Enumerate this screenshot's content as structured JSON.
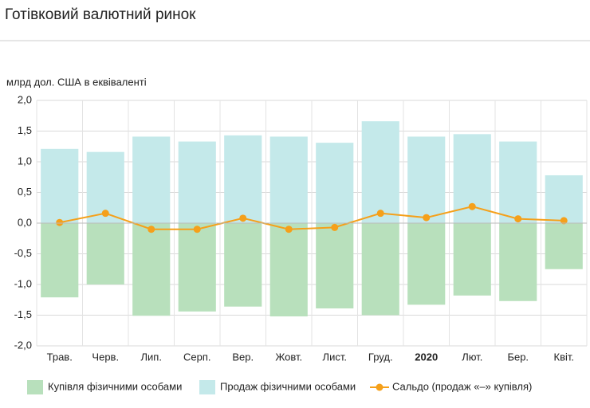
{
  "chart_data": {
    "type": "bar",
    "title": "Готівковий валютний ринок",
    "y_label": "млрд дол. США в еквіваленті",
    "categories": [
      "Трав.",
      "Черв.",
      "Лип.",
      "Серп.",
      "Вер.",
      "Жовт.",
      "Лист.",
      "Груд.",
      "2020",
      "Лют.",
      "Бер.",
      "Квіт."
    ],
    "series": [
      {
        "name": "Купівля фізичними особами",
        "type": "bar",
        "color": "#b8e0bc",
        "values": [
          -1.21,
          -1.0,
          -1.51,
          -1.44,
          -1.36,
          -1.52,
          -1.39,
          -1.5,
          -1.33,
          -1.18,
          -1.27,
          -0.75
        ]
      },
      {
        "name": "Продаж фізичними особами",
        "type": "bar",
        "color": "#c4e9ea",
        "values": [
          1.21,
          1.16,
          1.41,
          1.33,
          1.43,
          1.41,
          1.31,
          1.66,
          1.41,
          1.45,
          1.33,
          0.78
        ]
      },
      {
        "name": "Сальдо (продаж «–» купівля)",
        "type": "line",
        "color": "#f5a01a",
        "values": [
          0.01,
          0.16,
          -0.1,
          -0.1,
          0.08,
          -0.1,
          -0.07,
          0.16,
          0.09,
          0.27,
          0.07,
          0.04
        ]
      }
    ],
    "ylim": [
      -2,
      2
    ],
    "yticks": [
      {
        "value": -2,
        "label": "-2,0"
      },
      {
        "value": -1.5,
        "label": "-1,5"
      },
      {
        "value": -1,
        "label": "-1,0"
      },
      {
        "value": -0.5,
        "label": "-0,5"
      },
      {
        "value": 0,
        "label": "0,0"
      },
      {
        "value": 0.5,
        "label": "0,5"
      },
      {
        "value": 1,
        "label": "1,0"
      },
      {
        "value": 1.5,
        "label": "1,5"
      },
      {
        "value": 2,
        "label": "2,0"
      }
    ],
    "grid": true
  }
}
